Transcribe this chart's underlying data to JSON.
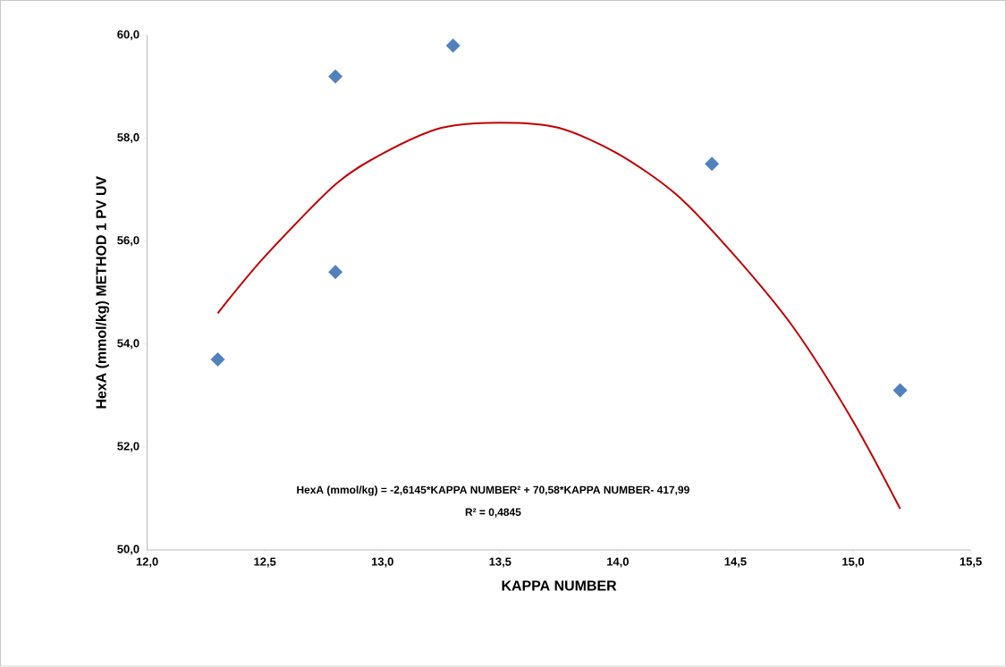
{
  "chart_data": {
    "type": "scatter",
    "xlabel": "KAPPA NUMBER",
    "ylabel": "HexA (mmol/kg) METHOD 1 PV UV",
    "xlim": [
      12.0,
      15.5
    ],
    "ylim": [
      50.0,
      60.0
    ],
    "xticks": [
      {
        "value": 12.0,
        "label": "12,0"
      },
      {
        "value": 12.5,
        "label": "12,5"
      },
      {
        "value": 13.0,
        "label": "13,0"
      },
      {
        "value": 13.5,
        "label": "13,5"
      },
      {
        "value": 14.0,
        "label": "14,0"
      },
      {
        "value": 14.5,
        "label": "14,5"
      },
      {
        "value": 15.0,
        "label": "15,0"
      },
      {
        "value": 15.5,
        "label": "15,5"
      }
    ],
    "yticks": [
      {
        "value": 50,
        "label": "50,0"
      },
      {
        "value": 52,
        "label": "52,0"
      },
      {
        "value": 54,
        "label": "54,0"
      },
      {
        "value": 56,
        "label": "56,0"
      },
      {
        "value": 58,
        "label": "58,0"
      },
      {
        "value": 60,
        "label": "60,0"
      }
    ],
    "series": [
      {
        "color": "#4f81bd",
        "marker": "diamond",
        "x": [
          12.3,
          12.8,
          12.8,
          13.3,
          14.4,
          15.2
        ],
        "values": [
          53.7,
          59.2,
          55.4,
          59.8,
          57.5,
          53.1
        ]
      },
      {
        "type": "line",
        "color": "#c00000",
        "marker": "none",
        "line_style": "solid",
        "x": [
          12.3,
          12.5,
          12.8,
          13.0,
          13.25,
          13.5,
          13.75,
          14.0,
          14.25,
          14.5,
          14.75,
          15.0,
          15.2
        ],
        "values": [
          54.6,
          55.7,
          57.1,
          57.7,
          58.2,
          58.3,
          58.2,
          57.7,
          56.9,
          55.7,
          54.3,
          52.5,
          50.8
        ]
      }
    ],
    "annotations": [
      "HexA (mmol/kg) = -2,6145*KAPPA NUMBER² + 70,58*KAPPA NUMBER- 417,99",
      "R² = 0,4845"
    ]
  }
}
